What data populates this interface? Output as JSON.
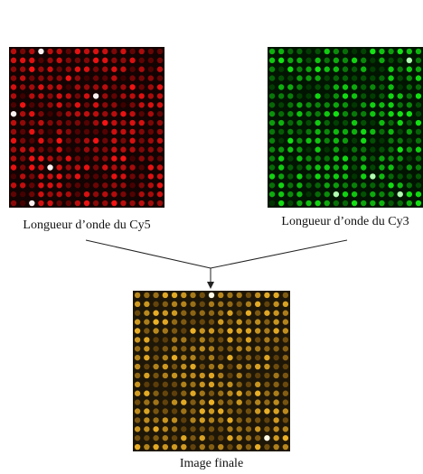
{
  "images": [
    {
      "label": "Longueur d’onde du Cy5"
    },
    {
      "label": "Longueur d’onde du Cy3"
    }
  ],
  "result": {
    "label": "Image finale"
  }
}
